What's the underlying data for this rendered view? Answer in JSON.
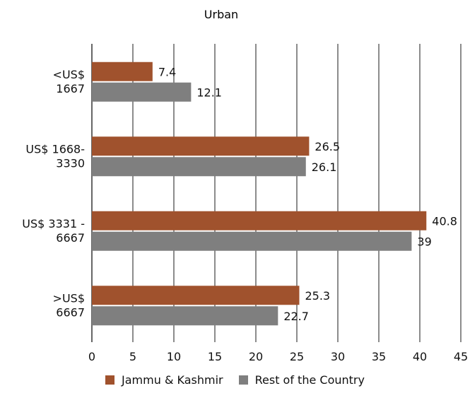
{
  "chart_data": {
    "type": "bar",
    "orientation": "horizontal",
    "title": "Urban",
    "categories": [
      [
        "<US$",
        "1667"
      ],
      [
        "US$ 1668-",
        "3330"
      ],
      [
        "US$ 3331 -",
        "6667"
      ],
      [
        ">US$",
        "6667"
      ]
    ],
    "series": [
      {
        "name": "Jammu & Kashmir",
        "values": [
          7.4,
          26.5,
          40.8,
          25.3
        ],
        "color": "#A0522D"
      },
      {
        "name": "Rest of the Country",
        "values": [
          12.1,
          26.1,
          39,
          22.7
        ],
        "color": "#7F7F7F"
      }
    ],
    "xlim": [
      0,
      45
    ],
    "xticks": [
      0,
      5,
      10,
      15,
      20,
      25,
      30,
      35,
      40,
      45
    ],
    "grid": true,
    "legend": "bottom"
  }
}
